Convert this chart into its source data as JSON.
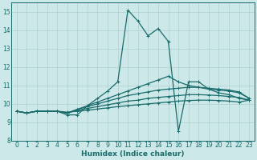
{
  "xlabel": "Humidex (Indice chaleur)",
  "background_color": "#cce8e8",
  "grid_color": "#aed0d0",
  "line_color": "#1a6b6b",
  "xlim": [
    -0.5,
    23.5
  ],
  "ylim": [
    8,
    15.5
  ],
  "yticks": [
    8,
    9,
    10,
    11,
    12,
    13,
    14,
    15
  ],
  "xticks": [
    0,
    1,
    2,
    3,
    4,
    5,
    6,
    7,
    8,
    9,
    10,
    11,
    12,
    13,
    14,
    15,
    16,
    17,
    18,
    19,
    20,
    21,
    22,
    23
  ],
  "lines": [
    [
      9.6,
      9.5,
      9.6,
      9.6,
      9.6,
      9.4,
      9.4,
      9.9,
      10.3,
      10.7,
      11.2,
      15.1,
      14.5,
      13.7,
      14.1,
      13.4,
      8.5,
      11.2,
      11.2,
      10.8,
      10.6,
      10.5,
      10.3,
      10.2
    ],
    [
      9.6,
      9.5,
      9.6,
      9.6,
      9.6,
      9.5,
      9.7,
      9.9,
      10.1,
      10.3,
      10.5,
      10.7,
      10.9,
      11.1,
      11.3,
      11.5,
      11.2,
      11.0,
      10.9,
      10.8,
      10.75,
      10.7,
      10.6,
      10.3
    ],
    [
      9.6,
      9.5,
      9.6,
      9.6,
      9.6,
      9.5,
      9.7,
      9.85,
      10.0,
      10.15,
      10.3,
      10.45,
      10.55,
      10.65,
      10.75,
      10.8,
      10.85,
      10.9,
      10.9,
      10.85,
      10.8,
      10.75,
      10.65,
      10.3
    ],
    [
      9.6,
      9.5,
      9.6,
      9.6,
      9.6,
      9.5,
      9.65,
      9.75,
      9.85,
      9.95,
      10.05,
      10.15,
      10.2,
      10.3,
      10.35,
      10.4,
      10.45,
      10.5,
      10.5,
      10.48,
      10.45,
      10.4,
      10.35,
      10.2
    ],
    [
      9.6,
      9.5,
      9.6,
      9.6,
      9.6,
      9.55,
      9.6,
      9.65,
      9.72,
      9.78,
      9.85,
      9.9,
      9.95,
      10.0,
      10.05,
      10.1,
      10.15,
      10.18,
      10.2,
      10.2,
      10.18,
      10.15,
      10.1,
      10.2
    ]
  ],
  "marker": "+",
  "marker_size": 2.5,
  "linewidth": 0.9
}
